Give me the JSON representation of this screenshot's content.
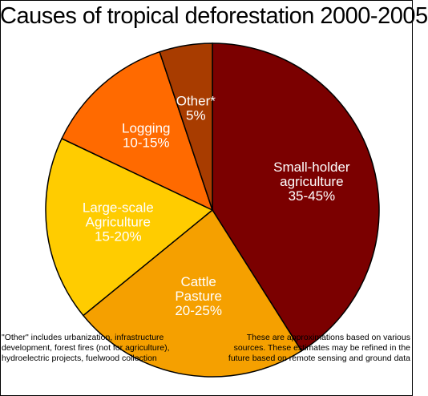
{
  "title": "Causes of tropical deforestation 2000-2005",
  "chart_data": {
    "type": "pie",
    "title": "Causes of tropical deforestation 2000-2005",
    "slices": [
      {
        "label_lines": [
          "Small-holder",
          "agriculture",
          "35-45%"
        ],
        "value": 40,
        "color": "#7b0000"
      },
      {
        "label_lines": [
          "Cattle",
          "Pasture",
          "20-25%"
        ],
        "value": 22.5,
        "color": "#f5a000"
      },
      {
        "label_lines": [
          "Large-scale",
          "Agriculture",
          "15-20%"
        ],
        "value": 17.5,
        "color": "#ffcc00"
      },
      {
        "label_lines": [
          "Logging",
          "10-15%"
        ],
        "value": 12.5,
        "color": "#ff6a00"
      },
      {
        "label_lines": [
          "Other*",
          "5%"
        ],
        "value": 5,
        "color": "#a83c00"
      }
    ]
  },
  "notes": {
    "left": "\"Other\" includes urbanization, infrastructure development, forest fires (not for agriculture), hydroelectric projects, fuelwood collection",
    "right": "These are approximations based on various sources. These estimates may be refined in the future based on remote sensing and ground data"
  }
}
